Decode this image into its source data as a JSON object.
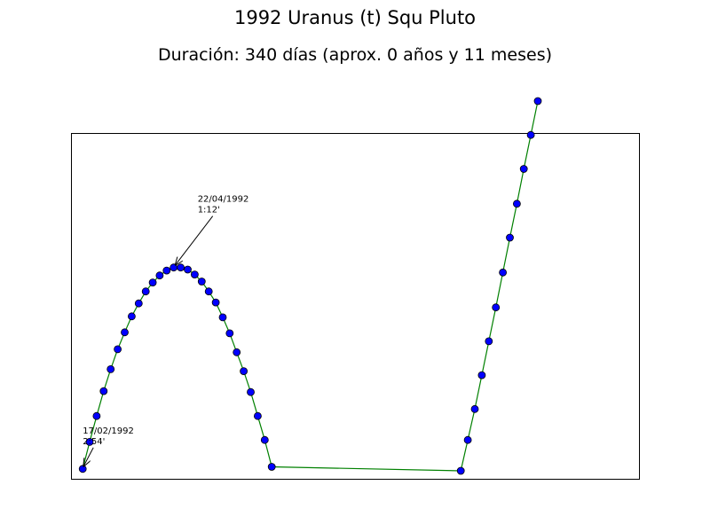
{
  "chart_data": {
    "type": "line",
    "title": "1992 Uranus (t) Squ Pluto",
    "subtitle": "Duración: 340 días (aprox. 0 años y 11 meses)",
    "xlabel": "",
    "ylabel": "",
    "grid": false,
    "legend": "none",
    "axis_ticks": false,
    "xlim": [
      -7.5,
      357.5
    ],
    "ylim": [
      0,
      3.47
    ],
    "line_color": "#008000",
    "marker_color": "#0000ff",
    "x": [
      0,
      4.5,
      9,
      13.5,
      18,
      22.5,
      27,
      31.5,
      36,
      40.5,
      45,
      49.5,
      54,
      58.5,
      63,
      67.5,
      72,
      76.5,
      81,
      85.5,
      90,
      94.5,
      99,
      103.5,
      108,
      112.5,
      117,
      121.5,
      243,
      247.5,
      252,
      256.5,
      261,
      265.5,
      270,
      274.5,
      279,
      283.5,
      288,
      292.5
    ],
    "y": [
      0.1,
      0.37,
      0.63,
      0.88,
      1.1,
      1.3,
      1.47,
      1.63,
      1.76,
      1.88,
      1.97,
      2.04,
      2.09,
      2.12,
      2.12,
      2.1,
      2.05,
      1.98,
      1.88,
      1.77,
      1.62,
      1.46,
      1.27,
      1.08,
      0.87,
      0.63,
      0.39,
      0.12,
      0.08,
      0.39,
      0.7,
      1.04,
      1.38,
      1.72,
      2.07,
      2.42,
      2.76,
      3.11,
      3.45,
      3.79
    ],
    "annotations": [
      {
        "date": "17/02/1992",
        "value": "2:54'",
        "point_index": 0
      },
      {
        "date": "22/04/1992",
        "value": "1:12'",
        "point_index": 13
      }
    ]
  }
}
